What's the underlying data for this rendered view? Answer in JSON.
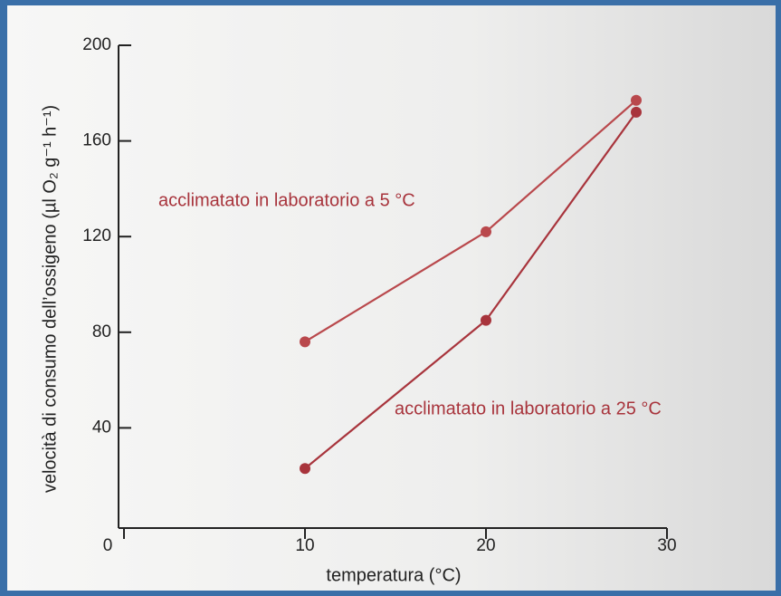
{
  "chart_data": {
    "type": "line",
    "xlabel": "temperatura (°C)",
    "ylabel": "velocità di consumo dell’ossigeno (µl O₂ g⁻¹ h⁻¹)",
    "xlim": [
      0,
      30
    ],
    "xticks": [
      0,
      10,
      20,
      30
    ],
    "ylim": [
      0,
      200
    ],
    "yticks": [
      40,
      80,
      120,
      160,
      200
    ],
    "series": [
      {
        "name": "acclimatato in laboratorio a 5 °C",
        "color": "#b9484c",
        "x": [
          10,
          20,
          28.3
        ],
        "values": [
          76,
          122,
          177
        ]
      },
      {
        "name": "acclimatato in laboratorio a 25 °C",
        "color": "#a8343c",
        "x": [
          10,
          20,
          28.3
        ],
        "values": [
          23,
          85,
          172
        ]
      }
    ]
  }
}
